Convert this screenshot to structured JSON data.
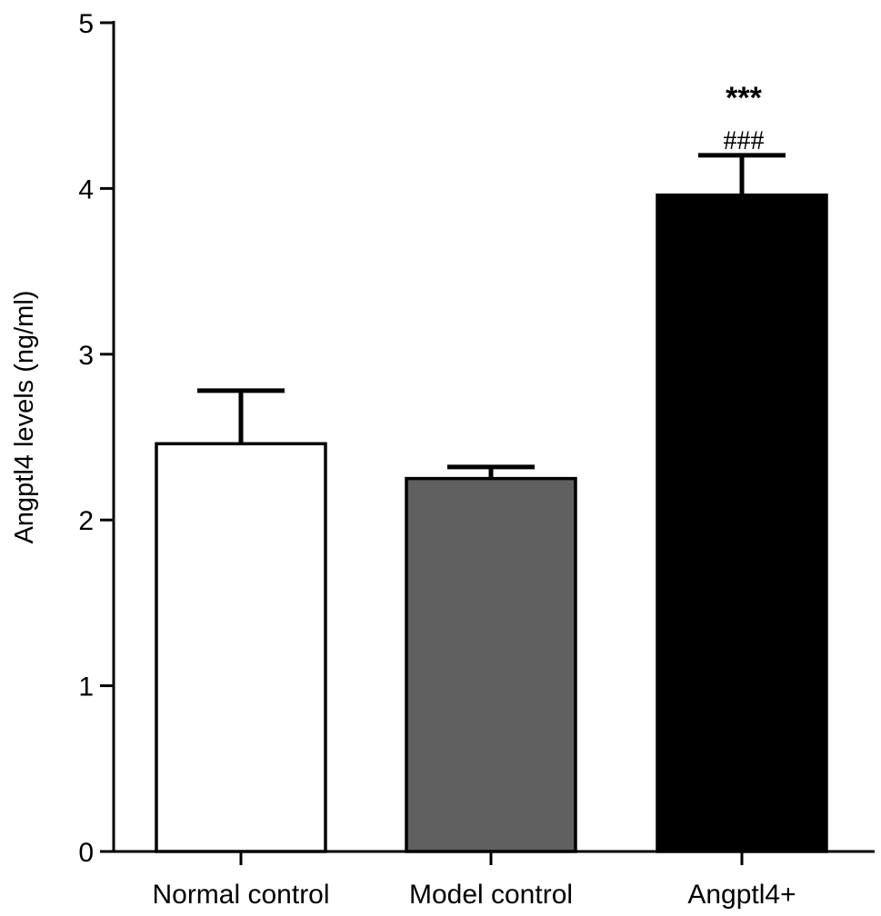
{
  "chart_data": {
    "type": "bar",
    "title": "",
    "xlabel": "",
    "ylabel": "Angptl4 levels (ng/ml)",
    "ylim": [
      0,
      5
    ],
    "yticks": [
      0,
      1,
      2,
      3,
      4,
      5
    ],
    "categories": [
      "Normal control",
      "Model control",
      "Angptl4+"
    ],
    "values": [
      2.46,
      2.25,
      3.96
    ],
    "errors": [
      0.32,
      0.07,
      0.24
    ],
    "colors": [
      "#ffffff",
      "#606060",
      "#000000"
    ],
    "annotations": [
      {
        "category": "Angptl4+",
        "text": "###"
      },
      {
        "category": "Angptl4+",
        "text": "***"
      }
    ],
    "grid": false,
    "legend": "none"
  }
}
